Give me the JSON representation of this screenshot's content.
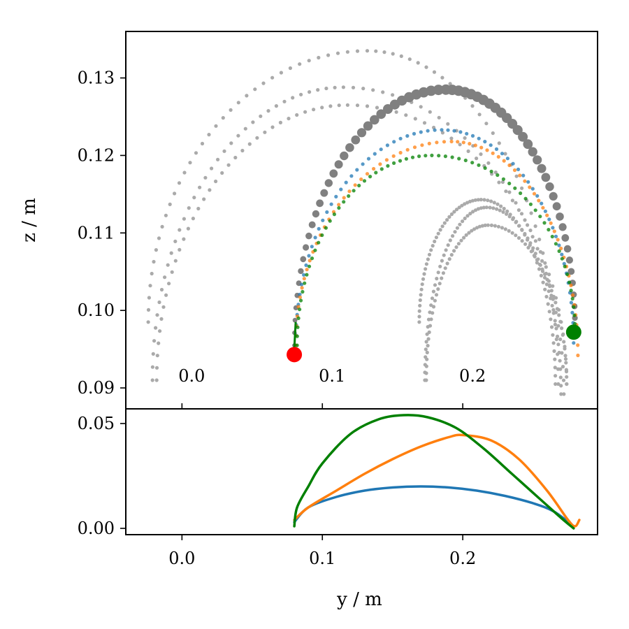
{
  "colors": {
    "blue": "#1f77b4",
    "orange": "#ff7f0e",
    "green": "#008000",
    "gray_light": "#aaaaaa",
    "gray_dark": "#808080",
    "start_marker": "#ff0000",
    "end_marker": "#008000"
  },
  "chart_data": [
    {
      "type": "scatter",
      "xlabel": "",
      "ylabel": "z / m",
      "xlim": [
        -0.04,
        0.296
      ],
      "ylim": [
        0.0873,
        0.136
      ],
      "yticks": [
        0.09,
        0.1,
        0.11,
        0.12,
        0.13
      ],
      "ytick_labels": [
        "0.09",
        "0.10",
        "0.11",
        "0.12",
        "0.13"
      ],
      "xticks": [
        0.0,
        0.1,
        0.2
      ],
      "xtick_labels_inside": [
        "0.0",
        "0.1",
        "0.2"
      ],
      "grid": false,
      "gray_arcs": [
        {
          "y0": -0.024,
          "z0": 0.0985,
          "apex_y": 0.132,
          "apex_z": 0.1335,
          "y1": 0.268,
          "z1": 0.0905
        },
        {
          "y0": -0.021,
          "z0": 0.091,
          "apex_y": 0.115,
          "apex_z": 0.1288,
          "y1": 0.272,
          "z1": 0.0892
        },
        {
          "y0": -0.018,
          "z0": 0.091,
          "apex_y": 0.118,
          "apex_z": 0.1265,
          "y1": 0.274,
          "z1": 0.0905
        },
        {
          "y0": 0.169,
          "z0": 0.0985,
          "apex_y": 0.213,
          "apex_z": 0.1143,
          "y1": 0.266,
          "z1": 0.0905
        },
        {
          "y0": 0.173,
          "z0": 0.091,
          "apex_y": 0.217,
          "apex_z": 0.1133,
          "y1": 0.27,
          "z1": 0.0892
        },
        {
          "y0": 0.174,
          "z0": 0.091,
          "apex_y": 0.218,
          "apex_z": 0.111,
          "y1": 0.274,
          "z1": 0.0905
        }
      ],
      "dark_arc": {
        "y0": 0.08,
        "z0": 0.0955,
        "apex_y": 0.188,
        "apex_z": 0.1285,
        "y1": 0.28,
        "z1": 0.0975
      },
      "series": [
        {
          "color_key": "blue",
          "y0": 0.081,
          "z0": 0.0955,
          "apex_y": 0.185,
          "apex_z": 0.1233,
          "y1": 0.279,
          "z1": 0.0958
        },
        {
          "color_key": "orange",
          "y0": 0.081,
          "z0": 0.0955,
          "apex_y": 0.192,
          "apex_z": 0.1218,
          "y1": 0.282,
          "z1": 0.0942
        },
        {
          "color_key": "green",
          "y0": 0.082,
          "z0": 0.0955,
          "apex_y": 0.178,
          "apex_z": 0.12,
          "y1": 0.28,
          "z1": 0.0972
        }
      ],
      "start_point": {
        "y": 0.08,
        "z": 0.0943
      },
      "end_point": {
        "y": 0.279,
        "z": 0.0972
      }
    },
    {
      "type": "line",
      "xlabel": "y / m",
      "ylabel": "",
      "xlim": [
        -0.04,
        0.296
      ],
      "ylim": [
        -0.003,
        0.057
      ],
      "xticks": [
        0.0,
        0.1,
        0.2
      ],
      "xtick_labels": [
        "0.0",
        "0.1",
        "0.2"
      ],
      "yticks": [
        0.0,
        0.05
      ],
      "ytick_labels": [
        "0.00",
        "0.05"
      ],
      "grid": false,
      "series": [
        {
          "color_key": "blue",
          "x": [
            0.08,
            0.09,
            0.11,
            0.13,
            0.15,
            0.17,
            0.19,
            0.21,
            0.23,
            0.25,
            0.265,
            0.279
          ],
          "y": [
            0.003,
            0.01,
            0.015,
            0.018,
            0.0195,
            0.02,
            0.0195,
            0.018,
            0.0155,
            0.012,
            0.008,
            0.001
          ]
        },
        {
          "color_key": "orange",
          "x": [
            0.08,
            0.09,
            0.11,
            0.13,
            0.15,
            0.17,
            0.19,
            0.2,
            0.22,
            0.24,
            0.26,
            0.275,
            0.28,
            0.283
          ],
          "y": [
            0.004,
            0.01,
            0.018,
            0.026,
            0.033,
            0.039,
            0.0435,
            0.0445,
            0.042,
            0.033,
            0.018,
            0.004,
            0.001,
            0.004
          ]
        },
        {
          "color_key": "green",
          "x": [
            0.08,
            0.082,
            0.09,
            0.1,
            0.12,
            0.14,
            0.158,
            0.175,
            0.195,
            0.215,
            0.235,
            0.255,
            0.27,
            0.279
          ],
          "y": [
            0.001,
            0.01,
            0.02,
            0.031,
            0.045,
            0.052,
            0.054,
            0.053,
            0.048,
            0.038,
            0.026,
            0.014,
            0.005,
            0.0
          ]
        }
      ]
    }
  ]
}
